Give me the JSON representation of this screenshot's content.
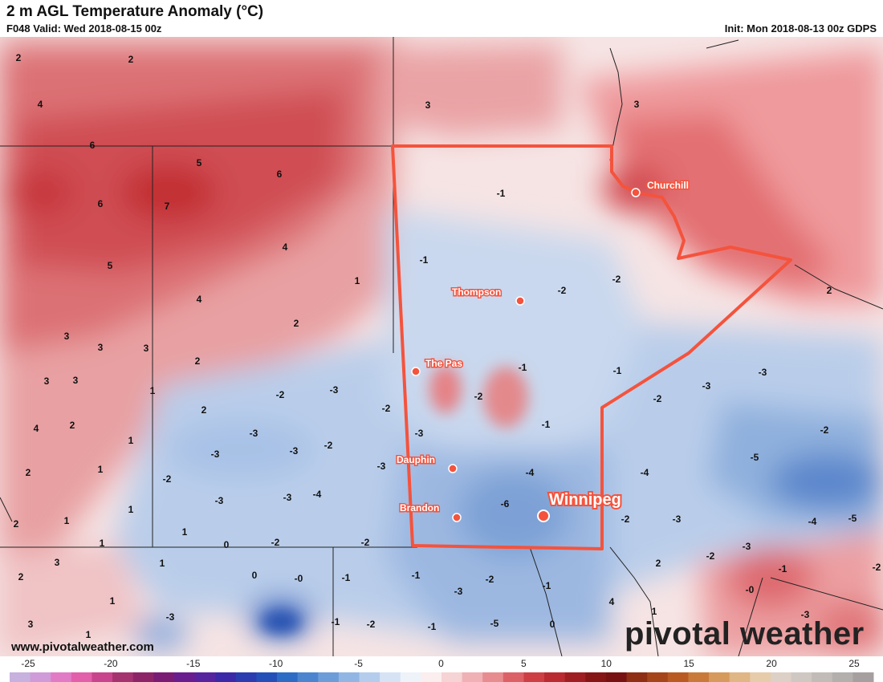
{
  "header": {
    "title": "2 m AGL Temperature Anomaly (°C)",
    "valid": "F048 Valid: Wed 2018-08-15 00z",
    "init": "Init: Mon 2018-08-13 00z GDPS"
  },
  "footer": {
    "url": "www.pivotalweather.com",
    "logo": "pivotal weather"
  },
  "cities": [
    {
      "name": "Churchill"
    },
    {
      "name": "Thompson"
    },
    {
      "name": "The Pas"
    },
    {
      "name": "Dauphin"
    },
    {
      "name": "Brandon"
    },
    {
      "name": "Winnipeg"
    }
  ],
  "values": [
    "2",
    "2",
    "4",
    "6",
    "5",
    "6",
    "7",
    "6",
    "5",
    "4",
    "1",
    "4",
    "2",
    "3",
    "3",
    "3",
    "3",
    "3",
    "2",
    "1",
    "4",
    "2",
    "1",
    "2",
    "1",
    "1",
    "2",
    "1",
    "2",
    "-3",
    "-2",
    "-3",
    "-2",
    "-3",
    "-3",
    "-2",
    "-3",
    "-3",
    "-4",
    "-2",
    "0",
    "-2",
    "3",
    "1",
    "1",
    "0",
    "-0",
    "2",
    "-3",
    "1",
    "1",
    "3",
    "-1",
    "1",
    "-1",
    "-2",
    "-1",
    "-2",
    "-1",
    "-2",
    "-3",
    "-3",
    "-4",
    "-6",
    "-1",
    "-2",
    "-1",
    "-2",
    "-3",
    "-5",
    "-1",
    "-1",
    "-2",
    "-1",
    "-2",
    "-3",
    "-4",
    "-2",
    "-3",
    "-5",
    "-3",
    "-2",
    "-4",
    "-5",
    "-2",
    "-3",
    "-1",
    "-0",
    "-3",
    "-2",
    "3",
    "2",
    "3",
    "2",
    "4",
    "1",
    "0",
    "-1",
    "-4",
    "-2",
    "-3",
    "-3",
    "-4",
    "-5"
  ],
  "colorbar": {
    "labels": [
      "-25",
      "-20",
      "-15",
      "-10",
      "-5",
      "0",
      "5",
      "10",
      "15",
      "20",
      "25"
    ],
    "colors": [
      "#c7b1de",
      "#d09bd9",
      "#e27bc6",
      "#e25fa9",
      "#c8448c",
      "#a5336f",
      "#8e2468",
      "#7a1b74",
      "#6a1d8e",
      "#56249f",
      "#3c29a8",
      "#2a3cb0",
      "#2350b8",
      "#2d6cc4",
      "#4b85cf",
      "#6d9dd9",
      "#91b6e3",
      "#b5cdec",
      "#d6e3f4",
      "#eef3fa",
      "#fbeeee",
      "#f6d3d4",
      "#efb1b3",
      "#e78c8f",
      "#dc6166",
      "#cd3f45",
      "#b92b31",
      "#9e1e22",
      "#861616",
      "#761212",
      "#8e2e12",
      "#a4451a",
      "#b95a22",
      "#c97a3a",
      "#d69a5c",
      "#dfb684",
      "#e6cca8",
      "#ddd0c6",
      "#cfc8c2",
      "#c2bcb8",
      "#b3afac",
      "#a5a09f"
    ]
  }
}
